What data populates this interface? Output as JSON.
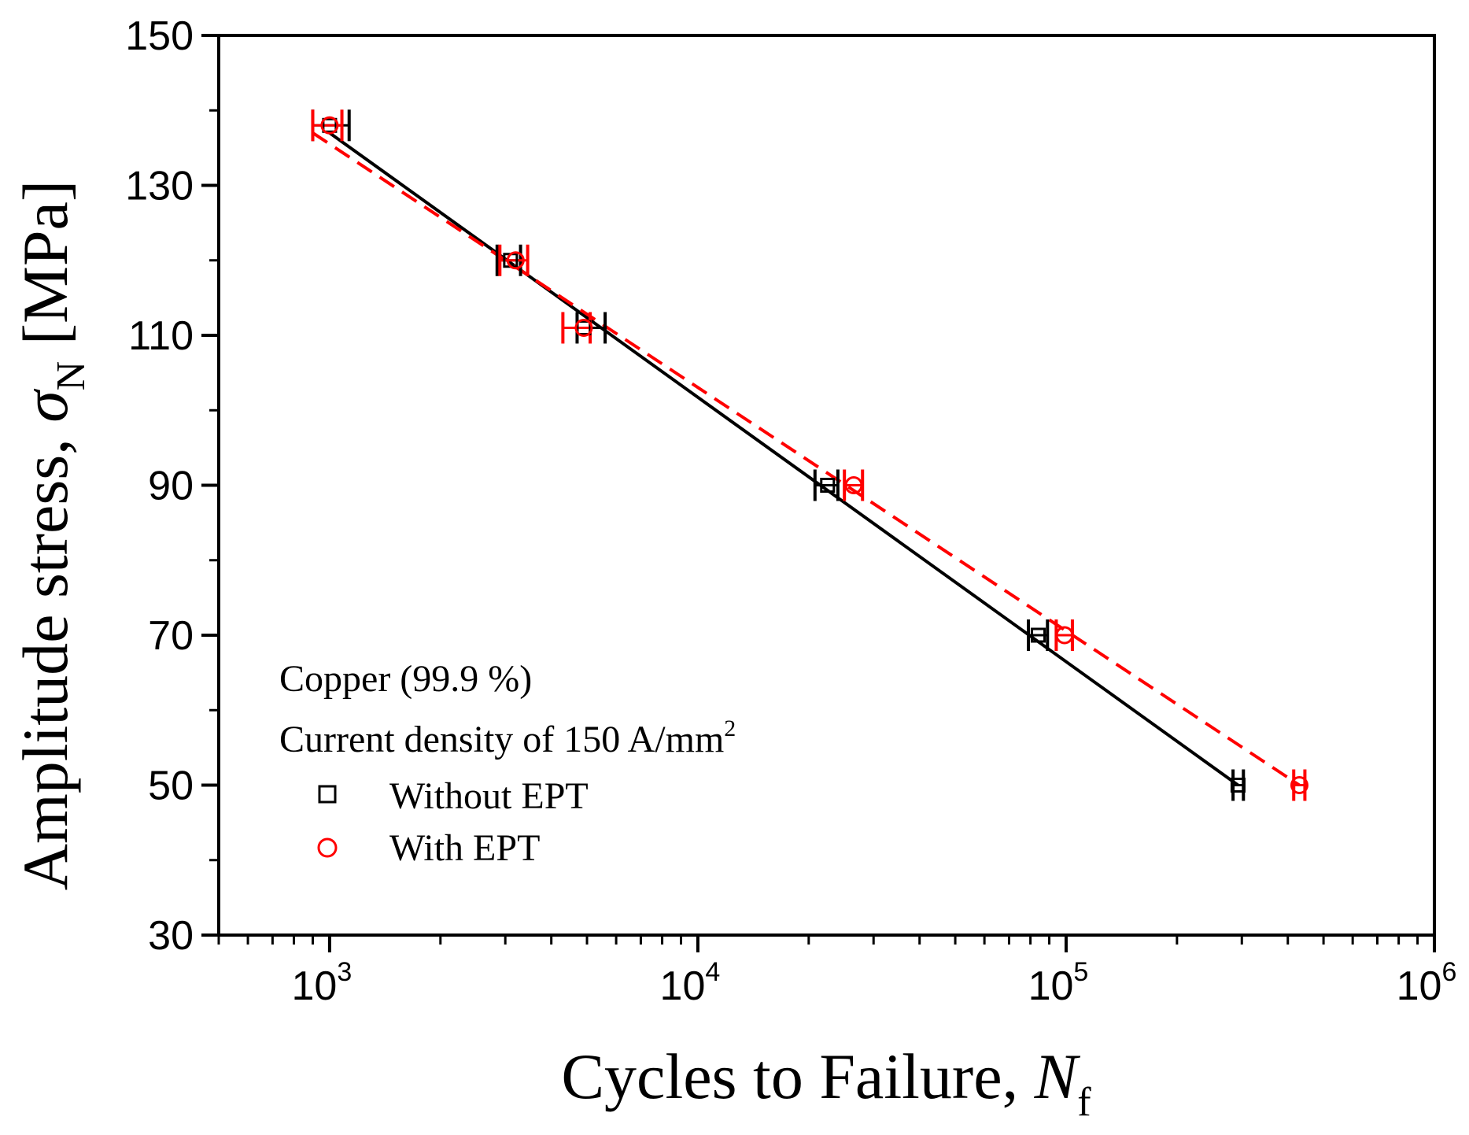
{
  "chart_data": {
    "type": "scatter",
    "title": "",
    "xlabel": "Cycles to Failure, ",
    "xlabel_var": "N",
    "xlabel_sub": "f",
    "ylabel": "Amplitude stress, ",
    "ylabel_var": "σ",
    "ylabel_sub": "N",
    "ylabel_unit": " [MPa]",
    "xscale": "log",
    "xlim": [
      500,
      1000000
    ],
    "ylim": [
      30,
      150
    ],
    "y_major_ticks": [
      30,
      50,
      70,
      90,
      110,
      130,
      150
    ],
    "y_minor_ticks": [
      40,
      60,
      80,
      100,
      120,
      140
    ],
    "x_major_ticks": [
      {
        "value": 1000,
        "base": "10",
        "exp": "3"
      },
      {
        "value": 10000,
        "base": "10",
        "exp": "4"
      },
      {
        "value": 100000,
        "base": "10",
        "exp": "5"
      },
      {
        "value": 1000000,
        "base": "10",
        "exp": "6"
      }
    ],
    "annotations": [
      "Copper (99.9 %)",
      "Current density of 150 A/mm",
      "2"
    ],
    "legend_position": "bottom-left",
    "series": [
      {
        "name": "Without EPT",
        "marker": "square",
        "color": "#000000",
        "line_style": "solid",
        "points": [
          {
            "x": 1000,
            "y": 138,
            "xmin": 900,
            "xmax": 1130
          },
          {
            "x": 3100,
            "y": 120,
            "xmin": 2850,
            "xmax": 3300
          },
          {
            "x": 4900,
            "y": 111,
            "xmin": 4700,
            "xmax": 5600
          },
          {
            "x": 22500,
            "y": 90,
            "xmin": 20800,
            "xmax": 24000
          },
          {
            "x": 84000,
            "y": 70,
            "xmin": 79000,
            "xmax": 89000
          },
          {
            "x": 293000,
            "y": 50,
            "xmin": 284000,
            "xmax": 303000
          }
        ],
        "fit": [
          {
            "x": 1000,
            "y": 137
          },
          {
            "x": 293000,
            "y": 50
          }
        ]
      },
      {
        "name": "With EPT",
        "marker": "circle",
        "color": "#ff0000",
        "line_style": "dashed",
        "points": [
          {
            "x": 1000,
            "y": 138,
            "xmin": 900,
            "xmax": 1080
          },
          {
            "x": 3200,
            "y": 120,
            "xmin": 2900,
            "xmax": 3450
          },
          {
            "x": 4900,
            "y": 111,
            "xmin": 4300,
            "xmax": 5100
          },
          {
            "x": 26500,
            "y": 90,
            "xmin": 25000,
            "xmax": 28000
          },
          {
            "x": 99000,
            "y": 70,
            "xmin": 94000,
            "xmax": 104000
          },
          {
            "x": 430000,
            "y": 50,
            "xmin": 415000,
            "xmax": 445000
          }
        ],
        "fit": [
          {
            "x": 900,
            "y": 137
          },
          {
            "x": 430000,
            "y": 50
          }
        ]
      }
    ]
  }
}
